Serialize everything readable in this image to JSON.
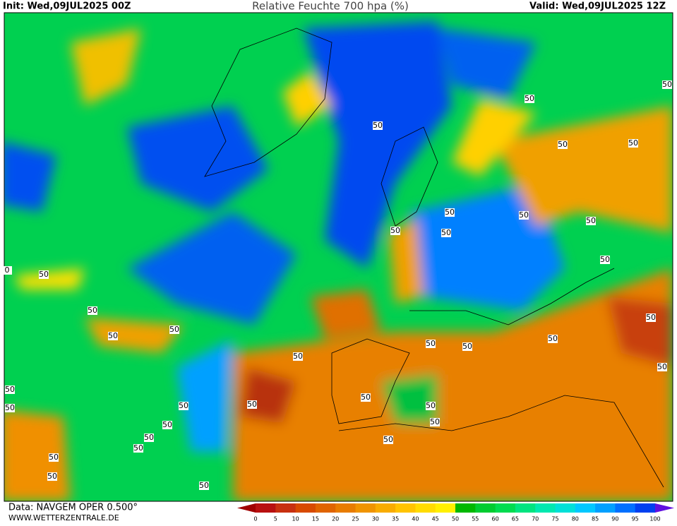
{
  "header": {
    "init": "Init: Wed,09JUL2025 00Z",
    "title": "Relative Feuchte 700 hpa (%)",
    "valid": "Valid: Wed,09JUL2025 12Z"
  },
  "map": {
    "contour_labels": [
      "50",
      "50",
      "50",
      "50",
      "50",
      "50",
      "50",
      "50",
      "50",
      "50",
      "50",
      "50",
      "50",
      "50",
      "50",
      "50",
      "50",
      "50",
      "50",
      "50",
      "50",
      "50",
      "50",
      "50",
      "50",
      "50",
      "50",
      "50",
      "50",
      "50",
      "50",
      "50",
      "50",
      "50",
      "50",
      "0"
    ]
  },
  "footer": {
    "data": "Data: NAVGEM OPER 0.500°",
    "website": "WWW.WETTERZENTRALE.DE"
  },
  "colorbar": {
    "labels": [
      0,
      5,
      10,
      15,
      20,
      25,
      30,
      35,
      40,
      45,
      50,
      55,
      60,
      65,
      70,
      75,
      80,
      85,
      90,
      95,
      100
    ],
    "colors": [
      "#b81010",
      "#c83010",
      "#d84a00",
      "#e06400",
      "#e87c00",
      "#f09400",
      "#f8ac00",
      "#ffc400",
      "#ffdc00",
      "#fff000",
      "#00b800",
      "#00cc30",
      "#00dc50",
      "#00e480",
      "#00e8b0",
      "#00e0d8",
      "#00c8ff",
      "#00a0ff",
      "#0070ff",
      "#0040f0"
    ],
    "arrow_colors": [
      "#a00000",
      "#6010e0"
    ]
  }
}
